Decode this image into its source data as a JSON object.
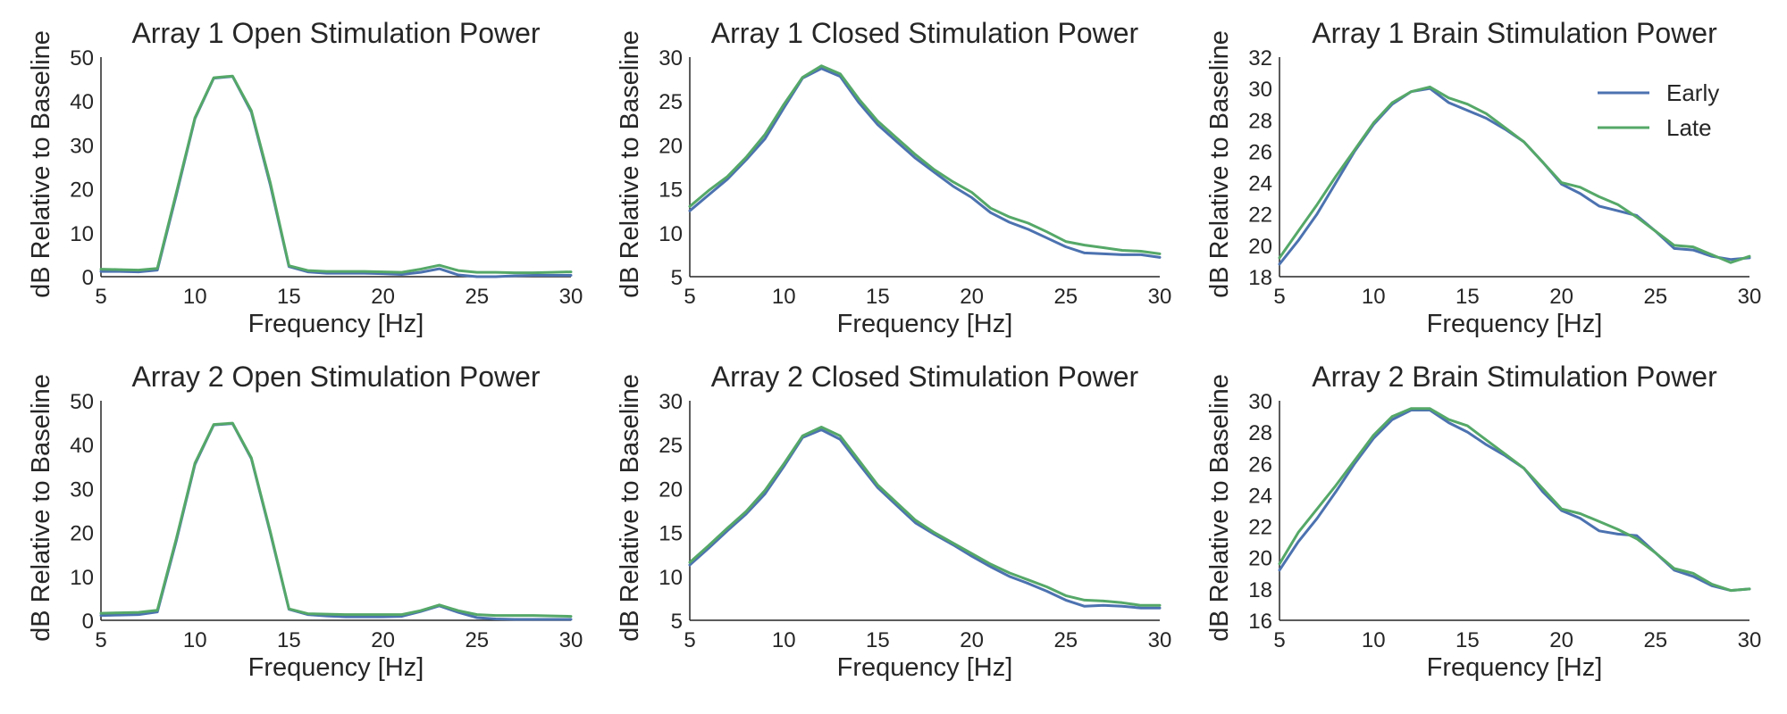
{
  "colors": {
    "early": "#4c72b0",
    "late": "#55a868",
    "axis": "#262626",
    "text": "#262626"
  },
  "legend": {
    "placement": "top-right",
    "panel": 2,
    "entries": [
      "Early",
      "Late"
    ]
  },
  "chart_data": [
    {
      "type": "line",
      "title": "Array 1 Open Stimulation Power",
      "xlabel": "Frequency [Hz]",
      "ylabel": "dB Relative to Baseline",
      "xlim": [
        5,
        30
      ],
      "ylim": [
        0,
        50
      ],
      "xticks": [
        5,
        10,
        15,
        20,
        25,
        30
      ],
      "yticks": [
        0,
        10,
        20,
        30,
        40,
        50
      ],
      "grid": false,
      "x": [
        5,
        6,
        7,
        8,
        9,
        10,
        11,
        12,
        13,
        14,
        15,
        16,
        17,
        18,
        19,
        20,
        21,
        22,
        23,
        24,
        25,
        26,
        27,
        28,
        29,
        30
      ],
      "series": [
        {
          "name": "Early",
          "values": [
            1.2,
            1.2,
            1.1,
            1.5,
            18.5,
            36,
            45.2,
            45.6,
            37.5,
            21,
            2.3,
            1.1,
            0.8,
            0.8,
            0.8,
            0.7,
            0.5,
            1.0,
            1.8,
            0.4,
            0.0,
            0.0,
            0.2,
            0.3,
            0.3,
            0.3
          ]
        },
        {
          "name": "Late",
          "values": [
            1.7,
            1.6,
            1.5,
            1.9,
            19,
            36.2,
            45.3,
            45.7,
            37.8,
            21.5,
            2.5,
            1.4,
            1.2,
            1.2,
            1.2,
            1.1,
            1.0,
            1.7,
            2.6,
            1.4,
            1.0,
            1.0,
            0.9,
            0.9,
            1.0,
            1.1
          ]
        }
      ]
    },
    {
      "type": "line",
      "title": "Array 1 Closed Stimulation Power",
      "xlabel": "Frequency [Hz]",
      "ylabel": "dB Relative to Baseline",
      "xlim": [
        5,
        30
      ],
      "ylim": [
        5,
        30
      ],
      "xticks": [
        5,
        10,
        15,
        20,
        25,
        30
      ],
      "yticks": [
        5,
        10,
        15,
        20,
        25,
        30
      ],
      "grid": false,
      "x": [
        5,
        6,
        7,
        8,
        9,
        10,
        11,
        12,
        13,
        14,
        15,
        16,
        17,
        18,
        19,
        20,
        21,
        22,
        23,
        24,
        25,
        26,
        27,
        28,
        29,
        30
      ],
      "series": [
        {
          "name": "Early",
          "values": [
            12.5,
            14.3,
            16.1,
            18.3,
            20.7,
            24.2,
            27.6,
            28.7,
            27.8,
            24.8,
            22.3,
            20.4,
            18.5,
            16.9,
            15.3,
            14.0,
            12.3,
            11.2,
            10.4,
            9.4,
            8.4,
            7.7,
            7.6,
            7.5,
            7.5,
            7.2
          ]
        },
        {
          "name": "Late",
          "values": [
            13.0,
            14.8,
            16.4,
            18.6,
            21.2,
            24.6,
            27.7,
            29.0,
            28.1,
            25.2,
            22.7,
            20.8,
            18.9,
            17.2,
            15.8,
            14.6,
            12.8,
            11.8,
            11.1,
            10.1,
            9.0,
            8.6,
            8.3,
            8.0,
            7.9,
            7.6
          ]
        }
      ]
    },
    {
      "type": "line",
      "title": "Array 1 Brain Stimulation Power",
      "xlabel": "Frequency [Hz]",
      "ylabel": "dB Relative to Baseline",
      "xlim": [
        5,
        30
      ],
      "ylim": [
        18,
        32
      ],
      "xticks": [
        5,
        10,
        15,
        20,
        25,
        30
      ],
      "yticks": [
        18,
        20,
        22,
        24,
        26,
        28,
        30,
        32
      ],
      "grid": false,
      "x": [
        5,
        6,
        7,
        8,
        9,
        10,
        11,
        12,
        13,
        14,
        15,
        16,
        17,
        18,
        19,
        20,
        21,
        22,
        23,
        24,
        25,
        26,
        27,
        28,
        29,
        30
      ],
      "series": [
        {
          "name": "Early",
          "values": [
            18.8,
            20.3,
            22.0,
            24.0,
            26.0,
            27.7,
            29.0,
            29.8,
            30.0,
            29.1,
            28.6,
            28.1,
            27.4,
            26.6,
            25.3,
            23.9,
            23.3,
            22.5,
            22.2,
            21.9,
            20.9,
            19.8,
            19.7,
            19.3,
            19.1,
            19.2
          ]
        },
        {
          "name": "Late",
          "values": [
            19.2,
            20.9,
            22.6,
            24.4,
            26.1,
            27.8,
            29.1,
            29.8,
            30.1,
            29.4,
            29.0,
            28.4,
            27.5,
            26.6,
            25.3,
            24.0,
            23.7,
            23.1,
            22.6,
            21.8,
            20.9,
            20.0,
            19.9,
            19.4,
            18.9,
            19.3
          ]
        }
      ]
    },
    {
      "type": "line",
      "title": "Array 2 Open Stimulation Power",
      "xlabel": "Frequency [Hz]",
      "ylabel": "dB Relative to Baseline",
      "xlim": [
        5,
        30
      ],
      "ylim": [
        0,
        50
      ],
      "xticks": [
        5,
        10,
        15,
        20,
        25,
        30
      ],
      "yticks": [
        0,
        10,
        20,
        30,
        40,
        50
      ],
      "grid": false,
      "x": [
        5,
        6,
        7,
        8,
        9,
        10,
        11,
        12,
        13,
        14,
        15,
        16,
        17,
        18,
        19,
        20,
        21,
        22,
        23,
        24,
        25,
        26,
        27,
        28,
        29,
        30
      ],
      "series": [
        {
          "name": "Early",
          "values": [
            1.1,
            1.2,
            1.3,
            1.9,
            18.0,
            35.5,
            44.5,
            44.8,
            36.8,
            20.0,
            2.5,
            1.3,
            1.0,
            0.8,
            0.8,
            0.8,
            0.9,
            2.0,
            3.3,
            1.8,
            0.6,
            0.3,
            0.2,
            0.2,
            0.2,
            0.2
          ]
        },
        {
          "name": "Late",
          "values": [
            1.6,
            1.7,
            1.8,
            2.3,
            18.5,
            35.8,
            44.6,
            44.9,
            37.0,
            20.3,
            2.6,
            1.5,
            1.4,
            1.3,
            1.3,
            1.3,
            1.3,
            2.2,
            3.5,
            2.2,
            1.3,
            1.1,
            1.1,
            1.1,
            1.0,
            0.9
          ]
        }
      ]
    },
    {
      "type": "line",
      "title": "Array 2 Closed Stimulation Power",
      "xlabel": "Frequency [Hz]",
      "ylabel": "dB Relative to Baseline",
      "xlim": [
        5,
        30
      ],
      "ylim": [
        5,
        30
      ],
      "xticks": [
        5,
        10,
        15,
        20,
        25,
        30
      ],
      "yticks": [
        5,
        10,
        15,
        20,
        25,
        30
      ],
      "grid": false,
      "x": [
        5,
        6,
        7,
        8,
        9,
        10,
        11,
        12,
        13,
        14,
        15,
        16,
        17,
        18,
        19,
        20,
        21,
        22,
        23,
        24,
        25,
        26,
        27,
        28,
        29,
        30
      ],
      "series": [
        {
          "name": "Early",
          "values": [
            11.3,
            13.2,
            15.2,
            17.1,
            19.4,
            22.5,
            25.8,
            26.7,
            25.6,
            22.8,
            20.1,
            18.1,
            16.1,
            14.8,
            13.6,
            12.3,
            11.1,
            10.0,
            9.2,
            8.3,
            7.3,
            6.6,
            6.7,
            6.6,
            6.4,
            6.4
          ]
        },
        {
          "name": "Late",
          "values": [
            11.6,
            13.5,
            15.5,
            17.4,
            19.8,
            22.8,
            26.0,
            27.0,
            26.0,
            23.2,
            20.4,
            18.4,
            16.4,
            15.0,
            13.8,
            12.6,
            11.4,
            10.4,
            9.6,
            8.8,
            7.8,
            7.3,
            7.2,
            7.0,
            6.7,
            6.7
          ]
        }
      ]
    },
    {
      "type": "line",
      "title": "Array 2 Brain Stimulation Power",
      "xlabel": "Frequency [Hz]",
      "ylabel": "dB Relative to Baseline",
      "xlim": [
        5,
        30
      ],
      "ylim": [
        16,
        30
      ],
      "xticks": [
        5,
        10,
        15,
        20,
        25,
        30
      ],
      "yticks": [
        16,
        18,
        20,
        22,
        24,
        26,
        28,
        30
      ],
      "grid": false,
      "x": [
        5,
        6,
        7,
        8,
        9,
        10,
        11,
        12,
        13,
        14,
        15,
        16,
        17,
        18,
        19,
        20,
        21,
        22,
        23,
        24,
        25,
        26,
        27,
        28,
        29,
        30
      ],
      "series": [
        {
          "name": "Early",
          "values": [
            19.2,
            21.0,
            22.5,
            24.2,
            26.0,
            27.6,
            28.8,
            29.4,
            29.4,
            28.6,
            28.0,
            27.2,
            26.5,
            25.7,
            24.2,
            23.0,
            22.5,
            21.7,
            21.5,
            21.4,
            20.3,
            19.2,
            18.8,
            18.2,
            17.9,
            18.0
          ]
        },
        {
          "name": "Late",
          "values": [
            19.6,
            21.6,
            23.1,
            24.6,
            26.2,
            27.8,
            29.0,
            29.5,
            29.5,
            28.8,
            28.4,
            27.5,
            26.6,
            25.7,
            24.4,
            23.1,
            22.8,
            22.3,
            21.8,
            21.2,
            20.3,
            19.3,
            19.0,
            18.3,
            17.9,
            18.0
          ]
        }
      ]
    }
  ]
}
